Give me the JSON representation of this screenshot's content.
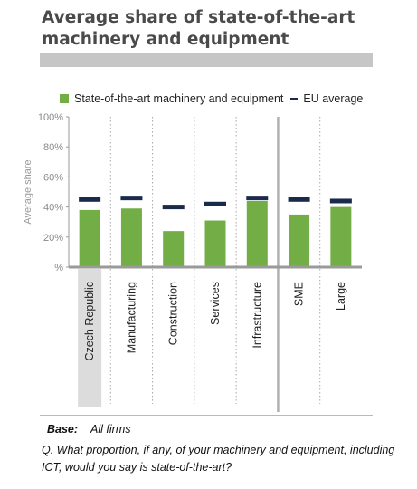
{
  "title": "Average share of state-of-the-art machinery and equipment",
  "legend": {
    "series_label": "State-of-the-art machinery and equipment",
    "avg_label": "EU average"
  },
  "colors": {
    "bar": "#73ad45",
    "avg_marker": "#1a2a4a",
    "highlight": "#dcdcdc",
    "axis": "#9a9a9a"
  },
  "footer": {
    "base_label": "Base:",
    "base_value": "All firms",
    "question": "Q. What proportion, if any, of your machinery and equipment, including ICT, would you say is state-of-the-art?"
  },
  "chart_data": {
    "type": "bar",
    "ylabel": "Average share",
    "ylim": [
      0,
      100
    ],
    "yticks": [
      "%",
      "20%",
      "40%",
      "60%",
      "80%",
      "100%"
    ],
    "categories": [
      "Czech Republic",
      "Manufacturing",
      "Construction",
      "Services",
      "Infrastructure",
      "SME",
      "Large"
    ],
    "highlighted_category": "Czech Republic",
    "series": [
      {
        "name": "State-of-the-art machinery and equipment",
        "values": [
          38,
          39,
          24,
          31,
          44,
          35,
          40
        ]
      },
      {
        "name": "EU average",
        "values": [
          45,
          46,
          40,
          42,
          46,
          45,
          44
        ]
      }
    ],
    "legend_position": "top",
    "grid": false
  }
}
